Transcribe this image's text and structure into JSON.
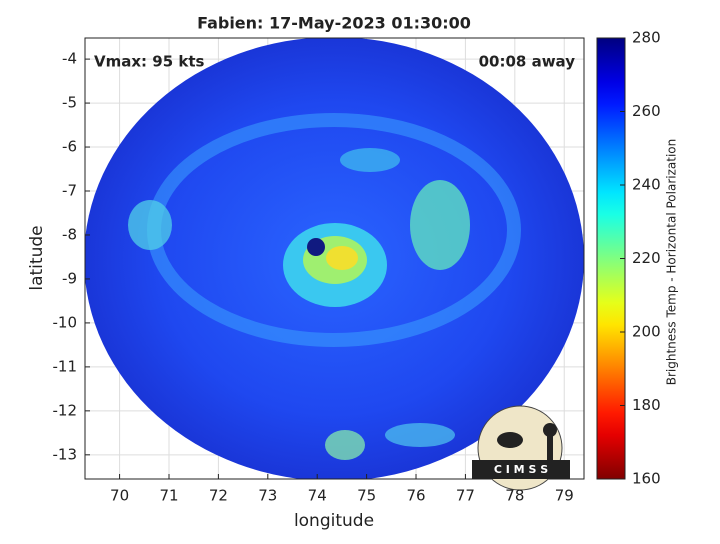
{
  "chart_data": {
    "type": "image",
    "title": "Fabien: 17-May-2023 01:30:00",
    "annotations": [
      "Vmax: 95 kts",
      "00:08 away"
    ],
    "xlabel": "longitude",
    "ylabel": "latitude",
    "xlim": [
      69.3,
      79.4
    ],
    "xticks": [
      70,
      71,
      72,
      73,
      74,
      75,
      76,
      77,
      78,
      79
    ],
    "ylim": [
      -13.55,
      -3.52
    ],
    "yticks": [
      -4,
      -5,
      -6,
      -7,
      -8,
      -9,
      -10,
      -11,
      -12,
      -13
    ],
    "grid": true,
    "colorbar": {
      "label": "Brightness Temp - Horizontal Polarization",
      "lim": [
        160,
        280
      ],
      "ticks": [
        160,
        180,
        200,
        220,
        240,
        260,
        280
      ],
      "colormap": "jet_r"
    },
    "logo_text": "C I M S S"
  }
}
